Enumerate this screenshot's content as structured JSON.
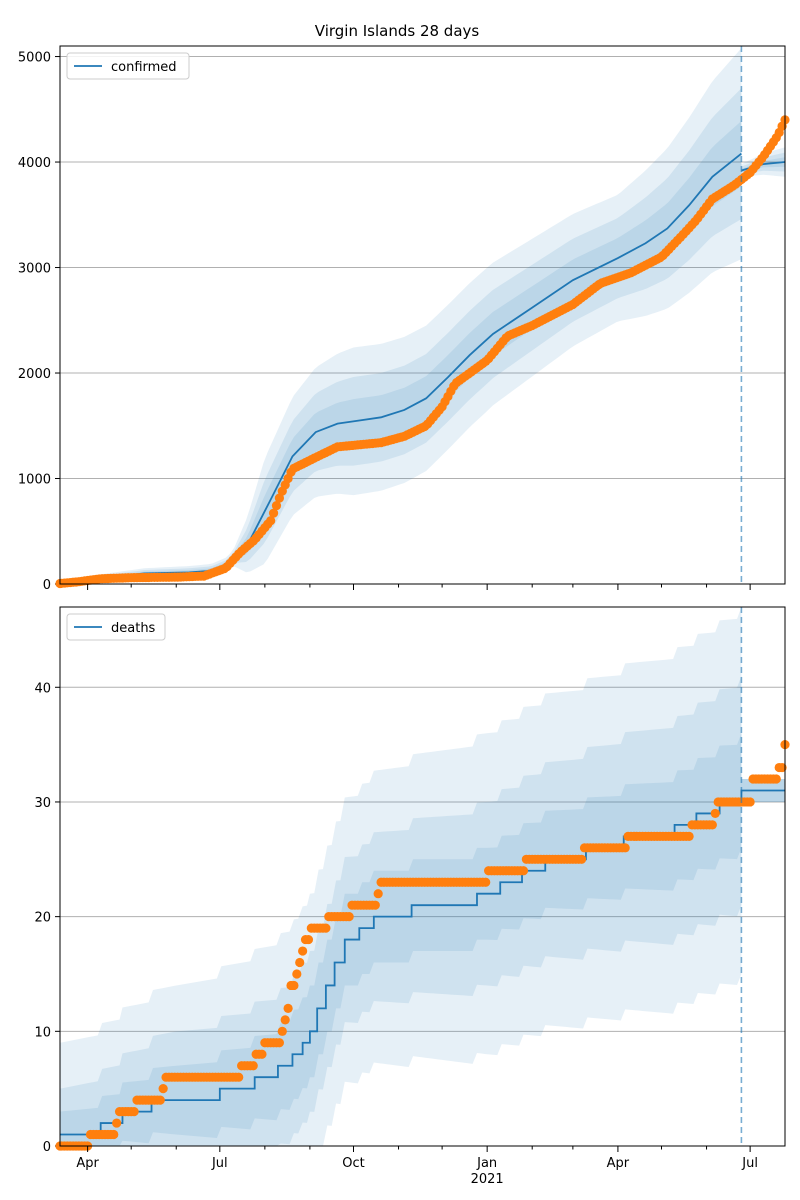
{
  "chart_data": [
    {
      "type": "line",
      "title": "Virgin Islands 28 days",
      "legend": [
        "confirmed"
      ],
      "legend_position": "top-left",
      "ylim": [
        0,
        5100
      ],
      "yticks": [
        0,
        1000,
        2000,
        3000,
        4000,
        5000
      ],
      "grid": "y",
      "vline_date": "2021-06-25",
      "model_line": [
        [
          "2020-03-13",
          5
        ],
        [
          "2020-04-15",
          60
        ],
        [
          "2020-05-10",
          100
        ],
        [
          "2020-06-10",
          110
        ],
        [
          "2020-06-25",
          125
        ],
        [
          "2020-07-05",
          180
        ],
        [
          "2020-07-20",
          370
        ],
        [
          "2020-08-05",
          800
        ],
        [
          "2020-08-20",
          1210
        ],
        [
          "2020-09-05",
          1440
        ],
        [
          "2020-09-20",
          1520
        ],
        [
          "2020-10-05",
          1550
        ],
        [
          "2020-10-20",
          1580
        ],
        [
          "2020-11-05",
          1650
        ],
        [
          "2020-11-20",
          1760
        ],
        [
          "2020-12-05",
          1960
        ],
        [
          "2020-12-20",
          2170
        ],
        [
          "2021-01-05",
          2370
        ],
        [
          "2021-02-01",
          2620
        ],
        [
          "2021-03-01",
          2880
        ],
        [
          "2021-04-01",
          3090
        ],
        [
          "2021-04-20",
          3230
        ],
        [
          "2021-05-05",
          3370
        ],
        [
          "2021-05-20",
          3590
        ],
        [
          "2021-06-05",
          3860
        ],
        [
          "2021-06-25",
          4080
        ]
      ],
      "model_line_after": [
        [
          "2021-06-25",
          3920
        ],
        [
          "2021-07-10",
          3980
        ],
        [
          "2021-07-25",
          4000
        ]
      ],
      "band_widths": [
        [
          [
            "2020-03-13",
            30
          ],
          [
            "2020-07-10",
            70
          ],
          [
            "2020-08-01",
            500
          ],
          [
            "2020-09-01",
            600
          ],
          [
            "2020-10-01",
            700
          ],
          [
            "2021-01-01",
            680
          ],
          [
            "2021-04-01",
            600
          ],
          [
            "2021-06-25",
            1000
          ]
        ],
        [
          [
            "2020-03-13",
            20
          ],
          [
            "2020-07-10",
            45
          ],
          [
            "2020-08-01",
            300
          ],
          [
            "2020-09-01",
            360
          ],
          [
            "2020-10-01",
            420
          ],
          [
            "2021-01-01",
            420
          ],
          [
            "2021-04-01",
            380
          ],
          [
            "2021-06-25",
            620
          ]
        ],
        [
          [
            "2020-03-13",
            10
          ],
          [
            "2020-07-10",
            25
          ],
          [
            "2020-08-01",
            150
          ],
          [
            "2020-09-01",
            180
          ],
          [
            "2020-10-01",
            210
          ],
          [
            "2021-01-01",
            210
          ],
          [
            "2021-04-01",
            190
          ],
          [
            "2021-06-25",
            310
          ]
        ]
      ],
      "band_widths_after": [
        [
          [
            "2021-06-25",
            60
          ],
          [
            "2021-07-25",
            140
          ]
        ],
        [
          [
            "2021-06-25",
            35
          ],
          [
            "2021-07-25",
            90
          ]
        ],
        [
          [
            "2021-06-25",
            15
          ],
          [
            "2021-07-25",
            45
          ]
        ]
      ],
      "observed": [
        [
          "2020-03-13",
          5
        ],
        [
          "2020-03-25",
          20
        ],
        [
          "2020-04-10",
          50
        ],
        [
          "2020-05-01",
          60
        ],
        [
          "2020-06-01",
          65
        ],
        [
          "2020-06-20",
          75
        ],
        [
          "2020-07-05",
          150
        ],
        [
          "2020-07-15",
          300
        ],
        [
          "2020-07-25",
          420
        ],
        [
          "2020-08-05",
          600
        ],
        [
          "2020-08-12",
          850
        ],
        [
          "2020-08-20",
          1090
        ],
        [
          "2020-09-05",
          1200
        ],
        [
          "2020-09-20",
          1300
        ],
        [
          "2020-10-05",
          1320
        ],
        [
          "2020-10-20",
          1340
        ],
        [
          "2020-11-05",
          1400
        ],
        [
          "2020-11-20",
          1500
        ],
        [
          "2020-12-01",
          1680
        ],
        [
          "2020-12-10",
          1900
        ],
        [
          "2020-12-20",
          2000
        ],
        [
          "2021-01-01",
          2120
        ],
        [
          "2021-01-15",
          2350
        ],
        [
          "2021-02-01",
          2450
        ],
        [
          "2021-03-01",
          2650
        ],
        [
          "2021-03-20",
          2850
        ],
        [
          "2021-04-10",
          2950
        ],
        [
          "2021-05-01",
          3100
        ],
        [
          "2021-05-15",
          3300
        ],
        [
          "2021-05-25",
          3450
        ],
        [
          "2021-06-05",
          3650
        ],
        [
          "2021-06-20",
          3780
        ],
        [
          "2021-07-01",
          3900
        ],
        [
          "2021-07-10",
          4050
        ],
        [
          "2021-07-20",
          4250
        ],
        [
          "2021-07-25",
          4400
        ]
      ]
    },
    {
      "type": "line",
      "title": "",
      "legend": [
        "deaths"
      ],
      "legend_position": "top-left",
      "ylim": [
        0,
        47
      ],
      "yticks": [
        0,
        10,
        20,
        30,
        40
      ],
      "grid": "y",
      "vline_date": "2021-06-25",
      "model_step": [
        [
          "2020-03-13",
          1
        ],
        [
          "2020-04-10",
          2
        ],
        [
          "2020-04-25",
          3
        ],
        [
          "2020-05-15",
          4
        ],
        [
          "2020-07-01",
          5
        ],
        [
          "2020-07-25",
          6
        ],
        [
          "2020-08-10",
          7
        ],
        [
          "2020-08-20",
          8
        ],
        [
          "2020-08-27",
          9
        ],
        [
          "2020-09-01",
          10
        ],
        [
          "2020-09-06",
          12
        ],
        [
          "2020-09-12",
          14
        ],
        [
          "2020-09-18",
          16
        ],
        [
          "2020-09-25",
          18
        ],
        [
          "2020-10-05",
          19
        ],
        [
          "2020-10-15",
          20
        ],
        [
          "2020-11-10",
          21
        ],
        [
          "2020-12-25",
          22
        ],
        [
          "2021-01-10",
          23
        ],
        [
          "2021-01-25",
          24
        ],
        [
          "2021-02-10",
          25
        ],
        [
          "2021-03-10",
          26
        ],
        [
          "2021-04-05",
          27
        ],
        [
          "2021-05-10",
          28
        ],
        [
          "2021-05-25",
          29
        ],
        [
          "2021-06-10",
          30
        ],
        [
          "2021-06-25",
          31
        ],
        [
          "2021-07-25",
          31
        ]
      ],
      "band_widths": [
        [
          [
            "2020-03-13",
            8
          ],
          [
            "2020-06-01",
            10
          ],
          [
            "2020-09-01",
            12
          ],
          [
            "2021-01-01",
            14
          ],
          [
            "2021-06-25",
            16
          ]
        ],
        [
          [
            "2020-03-13",
            4
          ],
          [
            "2020-06-01",
            6
          ],
          [
            "2020-09-01",
            7
          ],
          [
            "2021-01-01",
            8
          ],
          [
            "2021-06-25",
            10
          ]
        ],
        [
          [
            "2020-03-13",
            2
          ],
          [
            "2020-06-01",
            3
          ],
          [
            "2020-09-01",
            4
          ],
          [
            "2021-01-01",
            4
          ],
          [
            "2021-06-25",
            5
          ]
        ]
      ],
      "band_widths_after": [
        [
          [
            "2021-06-25",
            1
          ],
          [
            "2021-07-25",
            1
          ]
        ],
        [
          [
            "2021-06-25",
            1
          ],
          [
            "2021-07-25",
            1
          ]
        ],
        [
          [
            "2021-06-25",
            1
          ],
          [
            "2021-07-25",
            1
          ]
        ]
      ],
      "observed": [
        [
          "2020-03-13",
          0
        ],
        [
          "2020-04-01",
          0
        ],
        [
          "2020-04-03",
          1
        ],
        [
          "2020-04-15",
          1
        ],
        [
          "2020-04-20",
          2
        ],
        [
          "2020-04-22",
          3
        ],
        [
          "2020-04-30",
          3
        ],
        [
          "2020-05-05",
          4
        ],
        [
          "2020-05-20",
          4
        ],
        [
          "2020-05-22",
          5
        ],
        [
          "2020-05-25",
          6
        ],
        [
          "2020-07-10",
          6
        ],
        [
          "2020-07-15",
          7
        ],
        [
          "2020-07-20",
          7
        ],
        [
          "2020-07-25",
          8
        ],
        [
          "2020-07-30",
          8
        ],
        [
          "2020-08-01",
          9
        ],
        [
          "2020-08-10",
          9
        ],
        [
          "2020-08-12",
          10
        ],
        [
          "2020-08-15",
          11
        ],
        [
          "2020-08-16",
          12
        ],
        [
          "2020-08-18",
          14
        ],
        [
          "2020-08-22",
          15
        ],
        [
          "2020-08-24",
          16
        ],
        [
          "2020-08-27",
          17
        ],
        [
          "2020-08-29",
          18
        ],
        [
          "2020-09-02",
          19
        ],
        [
          "2020-09-12",
          19
        ],
        [
          "2020-09-14",
          20
        ],
        [
          "2020-09-28",
          20
        ],
        [
          "2020-09-30",
          21
        ],
        [
          "2020-10-15",
          21
        ],
        [
          "2020-10-17",
          22
        ],
        [
          "2020-10-19",
          23
        ],
        [
          "2020-12-31",
          23
        ],
        [
          "2021-01-02",
          24
        ],
        [
          "2021-01-25",
          24
        ],
        [
          "2021-01-27",
          25
        ],
        [
          "2021-03-05",
          25
        ],
        [
          "2021-03-08",
          26
        ],
        [
          "2021-04-05",
          26
        ],
        [
          "2021-04-07",
          27
        ],
        [
          "2021-05-20",
          27
        ],
        [
          "2021-05-22",
          28
        ],
        [
          "2021-06-05",
          28
        ],
        [
          "2021-06-07",
          29
        ],
        [
          "2021-06-08",
          30
        ],
        [
          "2021-06-30",
          30
        ],
        [
          "2021-07-02",
          32
        ],
        [
          "2021-07-20",
          32
        ],
        [
          "2021-07-21",
          33
        ],
        [
          "2021-07-24",
          35
        ],
        [
          "2021-07-25",
          35
        ]
      ]
    }
  ],
  "x_axis": {
    "start": "2020-03-13",
    "end": "2021-07-25",
    "tick_labels": [
      {
        "date": "2020-04-01",
        "label": "Apr"
      },
      {
        "date": "2020-07-01",
        "label": "Jul"
      },
      {
        "date": "2020-10-01",
        "label": "Oct"
      },
      {
        "date": "2021-01-01",
        "label": "Jan",
        "sub": "2021"
      },
      {
        "date": "2021-04-01",
        "label": "Apr"
      },
      {
        "date": "2021-07-01",
        "label": "Jul"
      }
    ]
  },
  "colors": {
    "line": "#1f77b4",
    "observed": "#ff7f0e",
    "band": "#1f77b4",
    "grid": "#b0b0b0"
  }
}
